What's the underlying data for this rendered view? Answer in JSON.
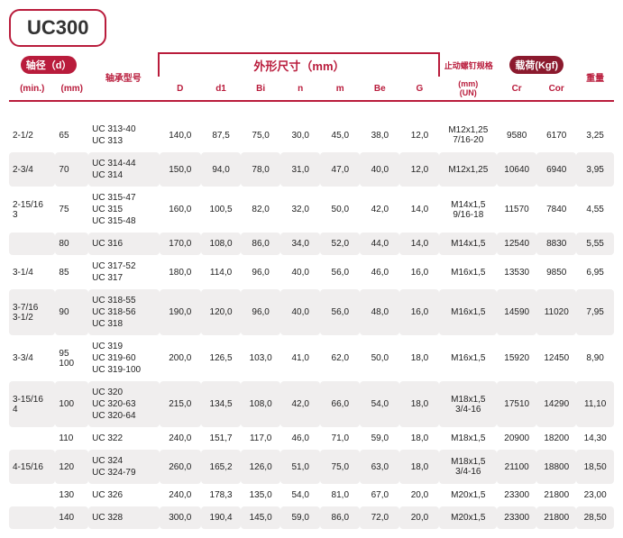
{
  "title": "UC300",
  "header": {
    "shaft_dia": "轴径（d）",
    "min": "(min.)",
    "mm": "(mm)",
    "bearing_no": "轴承型号",
    "outline": "外形尺寸（mm）",
    "D": "D",
    "d1": "d1",
    "Bi": "Bi",
    "n": "n",
    "m": "m",
    "Be": "Be",
    "G": "G",
    "screw": "止动螺钉规格",
    "screw_sub": "(mm)\n(UN)",
    "load": "载荷(Kgf)",
    "Cr": "Cr",
    "Cor": "Cor",
    "weight": "重量"
  },
  "rows": [
    {
      "min": "2-1/2",
      "mm": "65",
      "models": "UC 313-40\nUC 313",
      "D": "140,0",
      "d1": "87,5",
      "Bi": "75,0",
      "n": "30,0",
      "m": "45,0",
      "Be": "38,0",
      "G": "12,0",
      "screw": "M12x1,25\n7/16-20",
      "Cr": "9580",
      "Cor": "6170",
      "wt": "3,25"
    },
    {
      "min": "2-3/4",
      "mm": "70",
      "models": "UC 314-44\nUC 314",
      "D": "150,0",
      "d1": "94,0",
      "Bi": "78,0",
      "n": "31,0",
      "m": "47,0",
      "Be": "40,0",
      "G": "12,0",
      "screw": "M12x1,25",
      "Cr": "10640",
      "Cor": "6940",
      "wt": "3,95"
    },
    {
      "min": "2-15/16\n3",
      "mm": "75",
      "models": "UC 315-47\nUC 315\nUC 315-48",
      "D": "160,0",
      "d1": "100,5",
      "Bi": "82,0",
      "n": "32,0",
      "m": "50,0",
      "Be": "42,0",
      "G": "14,0",
      "screw": "M14x1,5\n9/16-18",
      "Cr": "11570",
      "Cor": "7840",
      "wt": "4,55"
    },
    {
      "min": "",
      "mm": "80",
      "models": "UC 316",
      "D": "170,0",
      "d1": "108,0",
      "Bi": "86,0",
      "n": "34,0",
      "m": "52,0",
      "Be": "44,0",
      "G": "14,0",
      "screw": "M14x1,5",
      "Cr": "12540",
      "Cor": "8830",
      "wt": "5,55"
    },
    {
      "min": "3-1/4",
      "mm": "85",
      "models": "UC 317-52\nUC 317",
      "D": "180,0",
      "d1": "114,0",
      "Bi": "96,0",
      "n": "40,0",
      "m": "56,0",
      "Be": "46,0",
      "G": "16,0",
      "screw": "M16x1,5",
      "Cr": "13530",
      "Cor": "9850",
      "wt": "6,95"
    },
    {
      "min": "3-7/16\n3-1/2",
      "mm": "90",
      "models": "UC 318-55\nUC 318-56\nUC 318",
      "D": "190,0",
      "d1": "120,0",
      "Bi": "96,0",
      "n": "40,0",
      "m": "56,0",
      "Be": "48,0",
      "G": "16,0",
      "screw": "M16x1,5",
      "Cr": "14590",
      "Cor": "11020",
      "wt": "7,95"
    },
    {
      "min": "3-3/4",
      "mm": "95\n100",
      "models": "UC 319\nUC 319-60\nUC 319-100",
      "D": "200,0",
      "d1": "126,5",
      "Bi": "103,0",
      "n": "41,0",
      "m": "62,0",
      "Be": "50,0",
      "G": "18,0",
      "screw": "M16x1,5",
      "Cr": "15920",
      "Cor": "12450",
      "wt": "8,90"
    },
    {
      "min": "3-15/16\n4",
      "mm": "100",
      "models": "UC 320\nUC 320-63\nUC 320-64",
      "D": "215,0",
      "d1": "134,5",
      "Bi": "108,0",
      "n": "42,0",
      "m": "66,0",
      "Be": "54,0",
      "G": "18,0",
      "screw": "M18x1,5\n3/4-16",
      "Cr": "17510",
      "Cor": "14290",
      "wt": "11,10"
    },
    {
      "min": "",
      "mm": "110",
      "models": "UC 322",
      "D": "240,0",
      "d1": "151,7",
      "Bi": "117,0",
      "n": "46,0",
      "m": "71,0",
      "Be": "59,0",
      "G": "18,0",
      "screw": "M18x1,5",
      "Cr": "20900",
      "Cor": "18200",
      "wt": "14,30"
    },
    {
      "min": "4-15/16",
      "mm": "120",
      "models": "UC 324\nUC 324-79",
      "D": "260,0",
      "d1": "165,2",
      "Bi": "126,0",
      "n": "51,0",
      "m": "75,0",
      "Be": "63,0",
      "G": "18,0",
      "screw": "M18x1,5\n3/4-16",
      "Cr": "21100",
      "Cor": "18800",
      "wt": "18,50"
    },
    {
      "min": "",
      "mm": "130",
      "models": "UC 326",
      "D": "240,0",
      "d1": "178,3",
      "Bi": "135,0",
      "n": "54,0",
      "m": "81,0",
      "Be": "67,0",
      "G": "20,0",
      "screw": "M20x1,5",
      "Cr": "23300",
      "Cor": "21800",
      "wt": "23,00"
    },
    {
      "min": "",
      "mm": "140",
      "models": "UC 328",
      "D": "300,0",
      "d1": "190,4",
      "Bi": "145,0",
      "n": "59,0",
      "m": "86,0",
      "Be": "72,0",
      "G": "20,0",
      "screw": "M20x1,5",
      "Cr": "23300",
      "Cor": "21800",
      "wt": "28,50"
    }
  ],
  "colors": {
    "brand": "#b91c3c",
    "brand_dark": "#8b1a2e",
    "row_alt": "#f0eeee",
    "text": "#333"
  }
}
